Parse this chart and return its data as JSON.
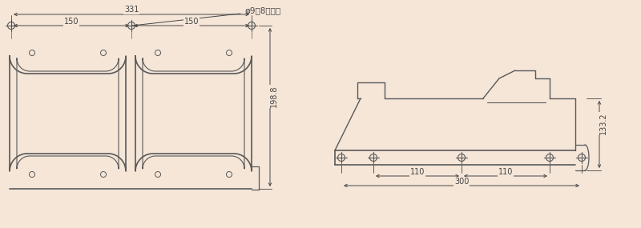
{
  "bg_color": "#f5e6d8",
  "line_color": "#595959",
  "dim_color": "#444444",
  "dim_331": "331",
  "dim_150_left": "150",
  "dim_150_right": "150",
  "dim_198_8": "198.8",
  "dim_133_2": "133.2",
  "dim_110_left": "110",
  "dim_110_right": "110",
  "dim_300": "300",
  "phi_label": "φ9（8ケ所）"
}
